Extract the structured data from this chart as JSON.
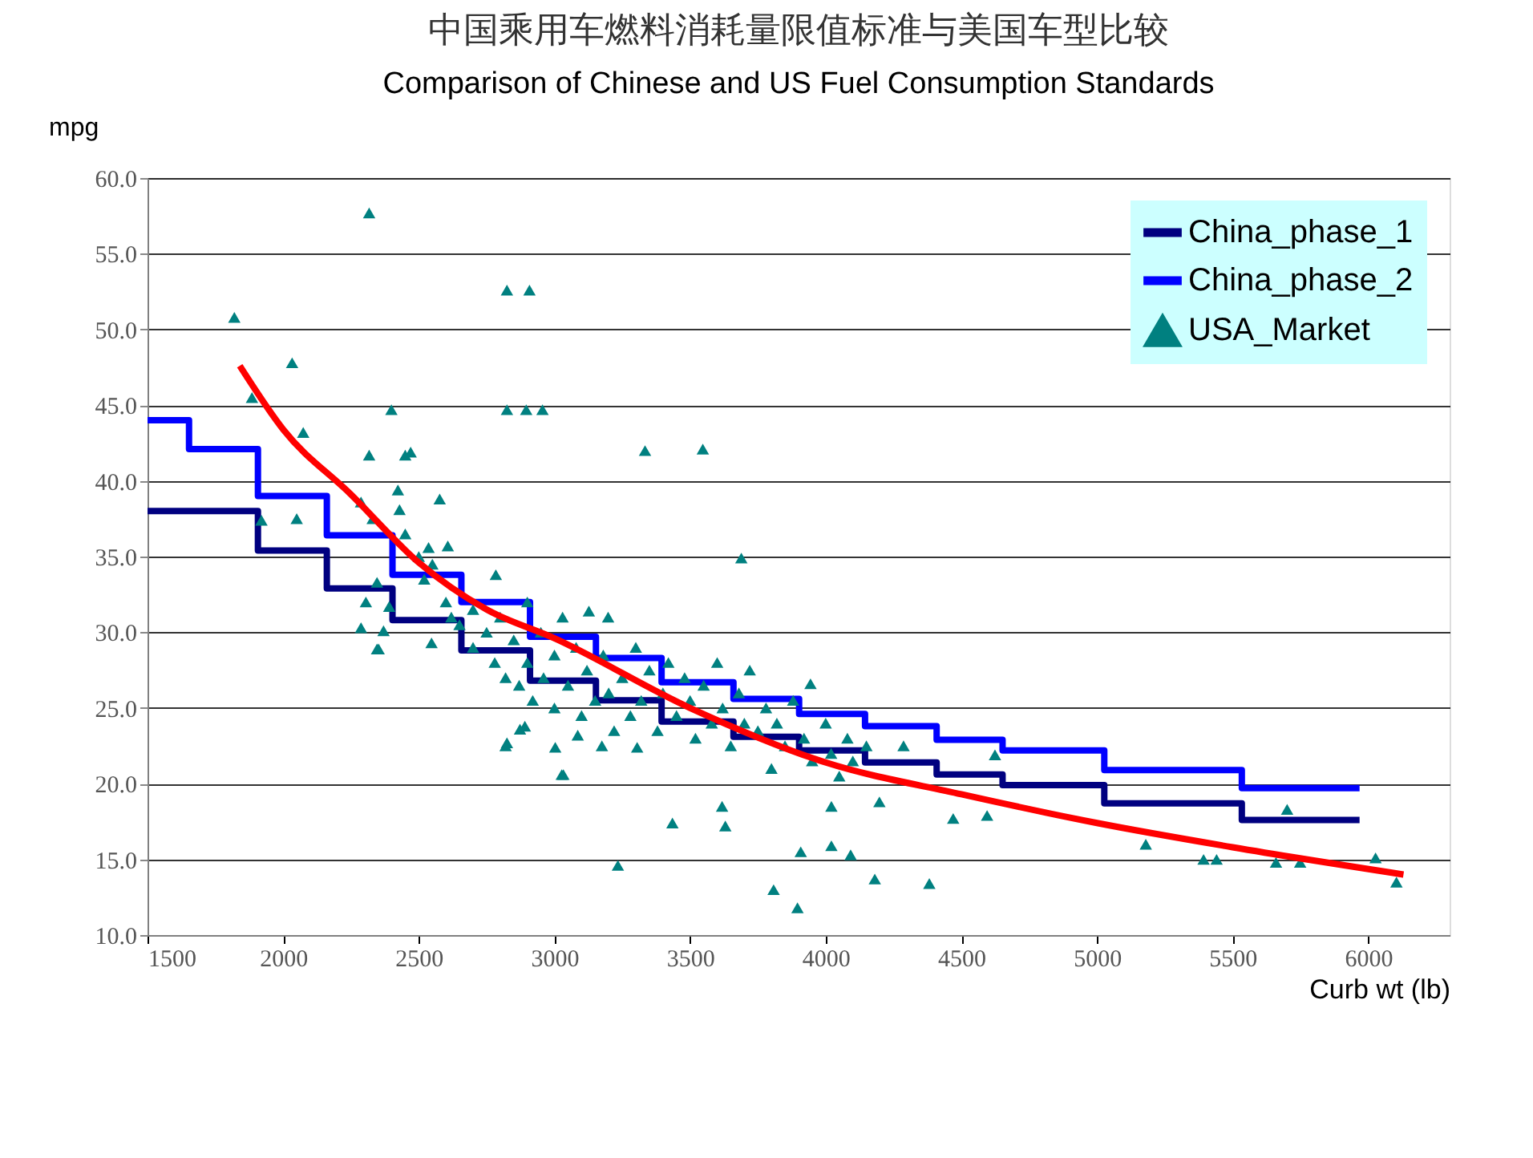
{
  "chart_data": {
    "type": "scatter",
    "title": "中国乘用车燃料消耗量限值标准与美国车型比较",
    "subtitle": "Comparison of Chinese and US Fuel Consumption Standards",
    "xlabel": "Curb wt (lb)",
    "ylabel": "mpg",
    "xlim": [
      1500,
      6300
    ],
    "xticks": [
      1500,
      2000,
      2500,
      3000,
      3500,
      4000,
      4500,
      5000,
      5500,
      6000
    ],
    "ylim": [
      10,
      60
    ],
    "yticks": [
      {
        "value": 10,
        "label": "10.0"
      },
      {
        "value": 15,
        "label": "15.0"
      },
      {
        "value": 20,
        "label": "20.0"
      },
      {
        "value": 25,
        "label": "25.0"
      },
      {
        "value": 30,
        "label": "30.0"
      },
      {
        "value": 35,
        "label": "35.0"
      },
      {
        "value": 40,
        "label": "40.0"
      },
      {
        "value": 45,
        "label": "45.0"
      },
      {
        "value": 50,
        "label": "50.0"
      },
      {
        "value": 55,
        "label": "55.0"
      },
      {
        "value": 60,
        "label": "60.0"
      }
    ],
    "grid": "y",
    "legend": "top right",
    "series": [
      {
        "name": "China_phase_1",
        "type": "step",
        "color": "#000080",
        "marker": "none",
        "x": [
          1500,
          1907,
          2161,
          2403,
          2657,
          2910,
          3153,
          3395,
          3660,
          3902,
          4145,
          4409,
          4652,
          5027,
          5534,
          5968
        ],
        "values": [
          38.0,
          35.4,
          32.9,
          30.8,
          28.8,
          26.8,
          25.5,
          24.1,
          23.1,
          22.2,
          21.4,
          20.6,
          19.9,
          18.7,
          17.6,
          17.6
        ]
      },
      {
        "name": "China_phase_2",
        "type": "step",
        "color": "#0000ff",
        "marker": "none",
        "x": [
          1500,
          1653,
          1907,
          2161,
          2403,
          2657,
          2910,
          3153,
          3395,
          3660,
          3902,
          4145,
          4409,
          4652,
          5027,
          5534,
          5968
        ],
        "values": [
          44.0,
          42.1,
          39.0,
          36.4,
          33.8,
          32.0,
          29.7,
          28.3,
          26.7,
          25.6,
          24.6,
          23.8,
          22.9,
          22.2,
          20.9,
          19.7,
          19.7
        ]
      },
      {
        "name": "USA_Market",
        "color": "#008080",
        "marker": "triangle",
        "x": [
          1820,
          1885,
          2033,
          2074,
          1920,
          2050,
          2317,
          2825,
          2908,
          2399,
          2825,
          2896,
          2956,
          2317,
          2450,
          2470,
          3334,
          3547,
          3689,
          2330,
          2370,
          2346,
          2391,
          2825,
          2891,
          3027,
          3435,
          3618,
          3630,
          3234,
          3808,
          3896,
          3908,
          4021,
          4021,
          4092,
          4181,
          4382,
          4198,
          4470,
          4595,
          4287,
          4624,
          3944,
          5180,
          5393,
          5441,
          5701,
          5660,
          5749,
          6027,
          6104,
          2287,
          2423,
          2429,
          2577,
          2607,
          2346,
          2305,
          2287,
          2352,
          2536,
          2784,
          2547,
          2820,
          2873,
          3003,
          3086,
          3033,
          3175,
          3305,
          3127,
          3198,
          2450,
          2500,
          2520,
          2550,
          2600,
          2620,
          2650,
          2700,
          2700,
          2750,
          2780,
          2800,
          2820,
          2850,
          2870,
          2900,
          2900,
          2920,
          2950,
          2960,
          3000,
          3000,
          3030,
          3050,
          3080,
          3100,
          3120,
          3150,
          3180,
          3200,
          3220,
          3250,
          3280,
          3300,
          3320,
          3350,
          3380,
          3400,
          3420,
          3450,
          3480,
          3500,
          3520,
          3550,
          3580,
          3600,
          3620,
          3650,
          3680,
          3700,
          3720,
          3750,
          3780,
          3800,
          3820,
          3850,
          3880,
          3920,
          3950,
          4000,
          4020,
          4050,
          4080,
          4100,
          4150
        ],
        "values": [
          50.8,
          45.5,
          47.8,
          43.2,
          37.4,
          37.5,
          57.7,
          52.6,
          52.6,
          44.7,
          44.7,
          44.7,
          44.7,
          41.7,
          41.7,
          41.9,
          42.0,
          42.1,
          34.9,
          37.5,
          30.1,
          28.9,
          31.7,
          22.7,
          23.8,
          20.6,
          17.4,
          18.5,
          17.2,
          14.6,
          13.0,
          11.8,
          15.5,
          18.5,
          15.9,
          15.3,
          13.7,
          13.4,
          18.8,
          17.7,
          17.9,
          22.5,
          21.9,
          26.6,
          16.0,
          15.0,
          15.0,
          18.3,
          14.8,
          14.8,
          15.1,
          13.5,
          38.6,
          39.4,
          38.1,
          38.8,
          35.7,
          33.3,
          32.0,
          30.3,
          28.9,
          35.6,
          33.8,
          29.3,
          22.5,
          23.6,
          22.4,
          23.2,
          20.6,
          22.5,
          22.4,
          31.4,
          31.0,
          36.5,
          35.0,
          33.5,
          34.5,
          32.0,
          31.0,
          30.5,
          31.5,
          29.0,
          30.0,
          28.0,
          31.0,
          27.0,
          29.5,
          26.5,
          32.0,
          28.0,
          25.5,
          30.0,
          27.0,
          28.5,
          25.0,
          31.0,
          26.5,
          29.0,
          24.5,
          27.5,
          25.5,
          28.5,
          26.0,
          23.5,
          27.0,
          24.5,
          29.0,
          25.5,
          27.5,
          23.5,
          26.0,
          28.0,
          24.5,
          27.0,
          25.5,
          23.0,
          26.5,
          24.0,
          28.0,
          25.0,
          22.5,
          26.0,
          24.0,
          27.5,
          23.5,
          25.0,
          21.0,
          24.0,
          22.5,
          25.5,
          23.0,
          21.5,
          24.0,
          22.0,
          20.5,
          23.0,
          21.5,
          22.5
        ]
      },
      {
        "type": "line",
        "color": "#ff0000",
        "marker": "none",
        "x": [
          1840,
          2000,
          2250,
          2500,
          2750,
          3000,
          3500,
          4000,
          4500,
          5000,
          5500,
          6130
        ],
        "values": [
          47.6,
          43.4,
          39.1,
          34.6,
          31.5,
          29.6,
          25.0,
          21.4,
          19.3,
          17.4,
          15.8,
          14.0
        ]
      }
    ]
  }
}
